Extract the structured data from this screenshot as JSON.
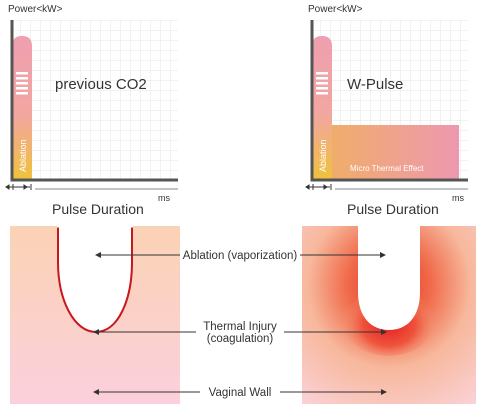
{
  "left_chart": {
    "y_label": "Power<kW>",
    "title": "previous CO2",
    "bar_label": "Ablation",
    "x_unit": "ms",
    "x_label": "Pulse Duration"
  },
  "right_chart": {
    "y_label": "Power<kW>",
    "title": "W-Pulse",
    "bar_label": "Ablation",
    "plateau_label": "Micro Thermal Effect",
    "x_unit": "ms",
    "x_label": "Pulse Duration"
  },
  "tissue": {
    "ablation_label": "Ablation (vaporization)",
    "thermal_label_line1": "Thermal Injury",
    "thermal_label_line2": "(coagulation)",
    "wall_label": "Vaginal Wall"
  },
  "colors": {
    "axis": "#555555",
    "grid": "#e4e4e4",
    "bar_top": "#ef9fb0",
    "bar_bottom": "#f0c23a",
    "tissue_pink": "#f7c6b5",
    "tissue_red": "#c8171e"
  }
}
